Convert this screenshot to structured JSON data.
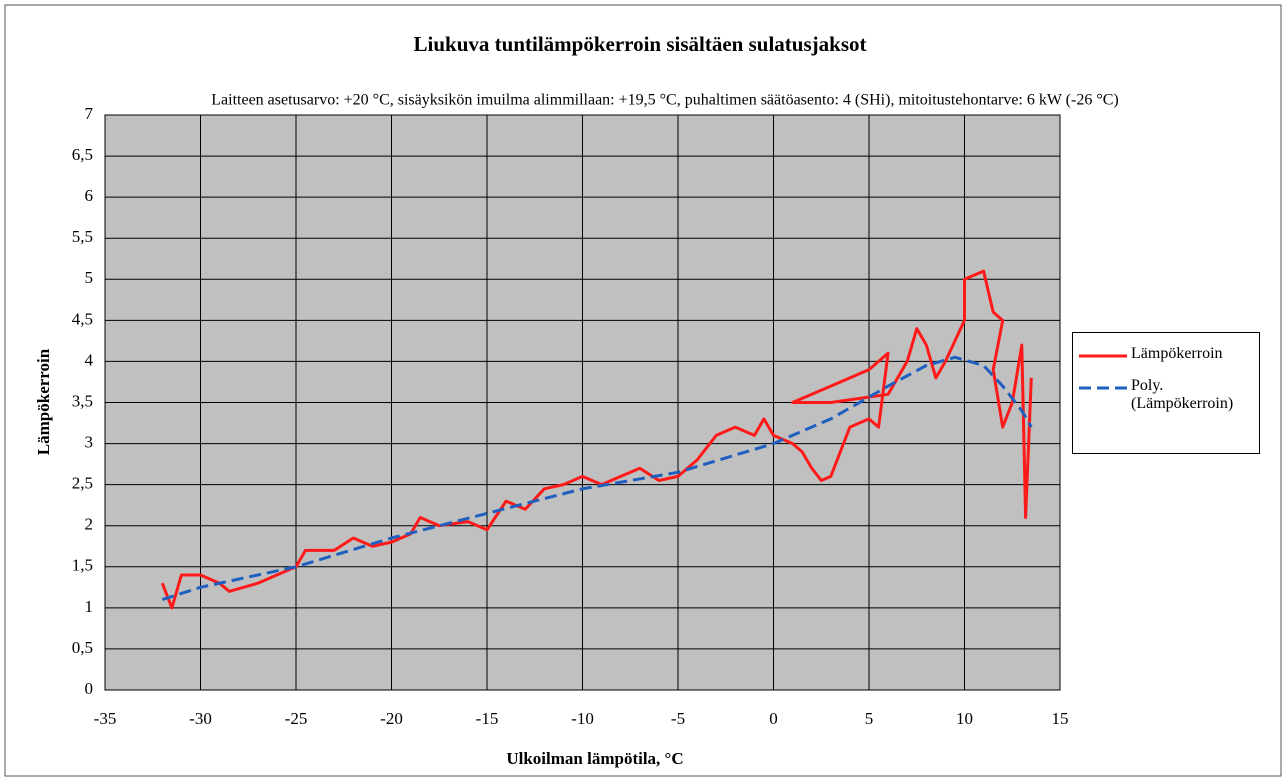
{
  "chart_data": {
    "type": "line",
    "title": "Liukuva tuntilämpökerroin sisältäen sulatusjaksot",
    "subtitle": "Laitteen asetusarvo: +20 °C, sisäyksikön imuilma alimmillaan:  +19,5 °C, puhaltimen säätöasento: 4 (SHi), mitoitustehontarve:  6 kW (-26 °C)",
    "xlabel": "Ulkoilman lämpötila,  °C",
    "ylabel": "Lämpökerroin",
    "xlim": [
      -35,
      15
    ],
    "xticks": [
      -35,
      -30,
      -25,
      -20,
      -15,
      -10,
      -5,
      0,
      5,
      10,
      15
    ],
    "ylim": [
      0,
      7
    ],
    "yticks": [
      0,
      {
        "value": 0.5,
        "label": "0,5"
      },
      1,
      {
        "value": 1.5,
        "label": "1,5"
      },
      2,
      {
        "value": 2.5,
        "label": "2,5"
      },
      3,
      {
        "value": 3.5,
        "label": "3,5"
      },
      4,
      {
        "value": 4.5,
        "label": "4,5"
      },
      5,
      {
        "value": 5.5,
        "label": "5,5"
      },
      6,
      {
        "value": 6.5,
        "label": "6,5"
      },
      7
    ],
    "grid": true,
    "legend": "right",
    "series": [
      {
        "name": "Lämpökerroin",
        "color": "#ff1a1a",
        "dash": false,
        "x": [
          -32,
          -31.5,
          -31,
          -30,
          -29,
          -28.5,
          -27,
          -25.5,
          -25,
          -24.5,
          -23,
          -22,
          -21,
          -20,
          -19,
          -18.5,
          -17.5,
          -16,
          -15,
          -14,
          -13,
          -12,
          -11,
          -10,
          -9,
          -8,
          -7,
          -6,
          -5,
          -4,
          -3,
          -2,
          -1,
          -0.5,
          0,
          1,
          1.5,
          2,
          2.5,
          3,
          4,
          5,
          5.5,
          6,
          5,
          3,
          1,
          3,
          6,
          7,
          7.5,
          8,
          8.5,
          9,
          10,
          10,
          11,
          11.5,
          12,
          11.5,
          12,
          12.5,
          13,
          13.2,
          13.5
        ],
        "values": [
          1.3,
          1.0,
          1.4,
          1.4,
          1.3,
          1.2,
          1.3,
          1.45,
          1.5,
          1.7,
          1.7,
          1.85,
          1.75,
          1.8,
          1.9,
          2.1,
          2.0,
          2.05,
          1.95,
          2.3,
          2.2,
          2.45,
          2.5,
          2.6,
          2.5,
          2.6,
          2.7,
          2.55,
          2.6,
          2.8,
          3.1,
          3.2,
          3.1,
          3.3,
          3.1,
          3.0,
          2.9,
          2.7,
          2.55,
          2.6,
          3.2,
          3.3,
          3.2,
          4.1,
          3.9,
          3.7,
          3.5,
          3.5,
          3.6,
          4.0,
          4.4,
          4.2,
          3.8,
          4.0,
          4.5,
          5.0,
          5.1,
          4.6,
          4.5,
          3.9,
          3.2,
          3.5,
          4.2,
          2.1,
          3.8
        ]
      },
      {
        "name": "Poly. (Lämpökerroin)",
        "color": "#1f5fbf",
        "dash": true,
        "x": [
          -32,
          -30,
          -25,
          -20,
          -15,
          -10,
          -5,
          0,
          3,
          6,
          8,
          9.5,
          11,
          12,
          13,
          13.5
        ],
        "values": [
          1.1,
          1.25,
          1.5,
          1.85,
          2.15,
          2.45,
          2.65,
          3.0,
          3.3,
          3.7,
          3.95,
          4.05,
          3.95,
          3.7,
          3.4,
          3.2
        ]
      }
    ]
  }
}
